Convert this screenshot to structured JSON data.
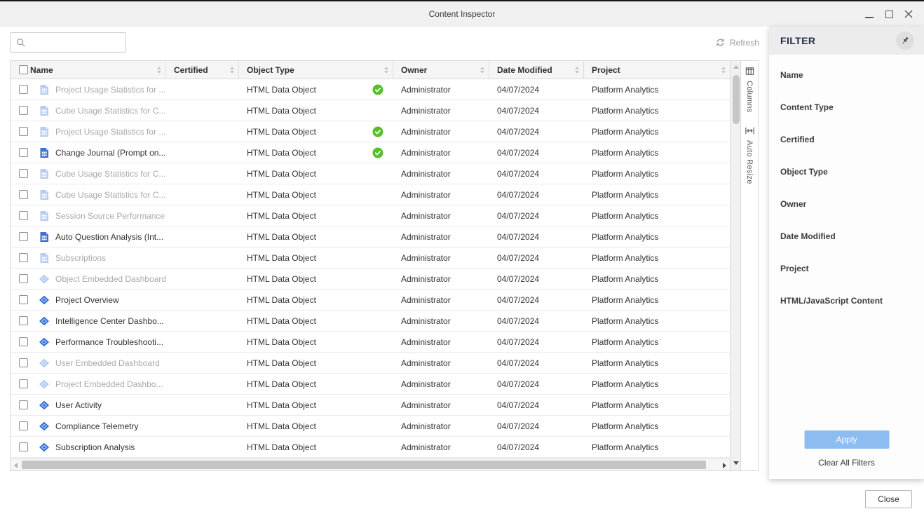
{
  "window": {
    "title": "Content Inspector",
    "titlebar_icons": [
      "minimize-icon",
      "maximize-icon",
      "close-icon"
    ]
  },
  "toolbar": {
    "search_value": "",
    "search_placeholder": "",
    "refresh_label": "Refresh"
  },
  "table": {
    "columns": [
      {
        "label": "Name"
      },
      {
        "label": "Certified"
      },
      {
        "label": "Object Type"
      },
      {
        "label": "Owner"
      },
      {
        "label": "Date Modified"
      },
      {
        "label": "Project"
      }
    ],
    "rows": [
      {
        "name": "Project Usage Statistics for ...",
        "icon": "document",
        "muted": true,
        "certified": true,
        "object_type": "HTML Data Object",
        "owner": "Administrator",
        "date_modified": "04/07/2024",
        "project": "Platform Analytics"
      },
      {
        "name": "Cube Usage Statistics for C...",
        "icon": "document",
        "muted": true,
        "certified": false,
        "object_type": "HTML Data Object",
        "owner": "Administrator",
        "date_modified": "04/07/2024",
        "project": "Platform Analytics"
      },
      {
        "name": "Project Usage Statistics for ...",
        "icon": "document",
        "muted": true,
        "certified": true,
        "object_type": "HTML Data Object",
        "owner": "Administrator",
        "date_modified": "04/07/2024",
        "project": "Platform Analytics"
      },
      {
        "name": "Change Journal (Prompt on...",
        "icon": "document",
        "muted": false,
        "certified": true,
        "object_type": "HTML Data Object",
        "owner": "Administrator",
        "date_modified": "04/07/2024",
        "project": "Platform Analytics"
      },
      {
        "name": "Cube Usage Statistics for C...",
        "icon": "document",
        "muted": true,
        "certified": false,
        "object_type": "HTML Data Object",
        "owner": "Administrator",
        "date_modified": "04/07/2024",
        "project": "Platform Analytics"
      },
      {
        "name": "Cube Usage Statistics for C...",
        "icon": "document",
        "muted": true,
        "certified": false,
        "object_type": "HTML Data Object",
        "owner": "Administrator",
        "date_modified": "04/07/2024",
        "project": "Platform Analytics"
      },
      {
        "name": "Session Source Performance",
        "icon": "document",
        "muted": true,
        "certified": false,
        "object_type": "HTML Data Object",
        "owner": "Administrator",
        "date_modified": "04/07/2024",
        "project": "Platform Analytics"
      },
      {
        "name": "Auto Question Analysis (Int...",
        "icon": "document",
        "muted": false,
        "certified": false,
        "object_type": "HTML Data Object",
        "owner": "Administrator",
        "date_modified": "04/07/2024",
        "project": "Platform Analytics"
      },
      {
        "name": "Subscriptions",
        "icon": "document",
        "muted": true,
        "certified": false,
        "object_type": "HTML Data Object",
        "owner": "Administrator",
        "date_modified": "04/07/2024",
        "project": "Platform Analytics"
      },
      {
        "name": "Object Embedded Dashboard",
        "icon": "dashboard",
        "muted": true,
        "certified": false,
        "object_type": "HTML Data Object",
        "owner": "Administrator",
        "date_modified": "04/07/2024",
        "project": "Platform Analytics"
      },
      {
        "name": "Project Overview",
        "icon": "dashboard",
        "muted": false,
        "certified": false,
        "object_type": "HTML Data Object",
        "owner": "Administrator",
        "date_modified": "04/07/2024",
        "project": "Platform Analytics"
      },
      {
        "name": "Intelligence Center Dashbo...",
        "icon": "dashboard",
        "muted": false,
        "certified": false,
        "object_type": "HTML Data Object",
        "owner": "Administrator",
        "date_modified": "04/07/2024",
        "project": "Platform Analytics"
      },
      {
        "name": "Performance Troubleshooti...",
        "icon": "dashboard",
        "muted": false,
        "certified": false,
        "object_type": "HTML Data Object",
        "owner": "Administrator",
        "date_modified": "04/07/2024",
        "project": "Platform Analytics"
      },
      {
        "name": "User Embedded Dashboard",
        "icon": "dashboard",
        "muted": true,
        "certified": false,
        "object_type": "HTML Data Object",
        "owner": "Administrator",
        "date_modified": "04/07/2024",
        "project": "Platform Analytics"
      },
      {
        "name": "Project Embedded Dashbo...",
        "icon": "dashboard",
        "muted": true,
        "certified": false,
        "object_type": "HTML Data Object",
        "owner": "Administrator",
        "date_modified": "04/07/2024",
        "project": "Platform Analytics"
      },
      {
        "name": "User Activity",
        "icon": "dashboard",
        "muted": false,
        "certified": false,
        "object_type": "HTML Data Object",
        "owner": "Administrator",
        "date_modified": "04/07/2024",
        "project": "Platform Analytics"
      },
      {
        "name": "Compliance Telemetry",
        "icon": "dashboard",
        "muted": false,
        "certified": false,
        "object_type": "HTML Data Object",
        "owner": "Administrator",
        "date_modified": "04/07/2024",
        "project": "Platform Analytics"
      },
      {
        "name": "Subscription Analysis",
        "icon": "dashboard",
        "muted": false,
        "certified": false,
        "object_type": "HTML Data Object",
        "owner": "Administrator",
        "date_modified": "04/07/2024",
        "project": "Platform Analytics"
      }
    ]
  },
  "side_tools": {
    "columns_label": "Columns",
    "auto_resize_label": "Auto Resize"
  },
  "filter": {
    "title": "FILTER",
    "fields": [
      "Name",
      "Content Type",
      "Certified",
      "Object Type",
      "Owner",
      "Date Modified",
      "Project",
      "HTML/JavaScript Content"
    ],
    "apply_label": "Apply",
    "apply_enabled": false,
    "clear_label": "Clear All Filters"
  },
  "footer": {
    "close_label": "Close"
  },
  "colors": {
    "object_icon_blue": "#3f6fd1",
    "certified_green": "#57bf2a",
    "apply_disabled_blue": "#8cbcf0",
    "filter_title_navy": "#232c47",
    "titlebar_gray": "#f0f0f0"
  }
}
